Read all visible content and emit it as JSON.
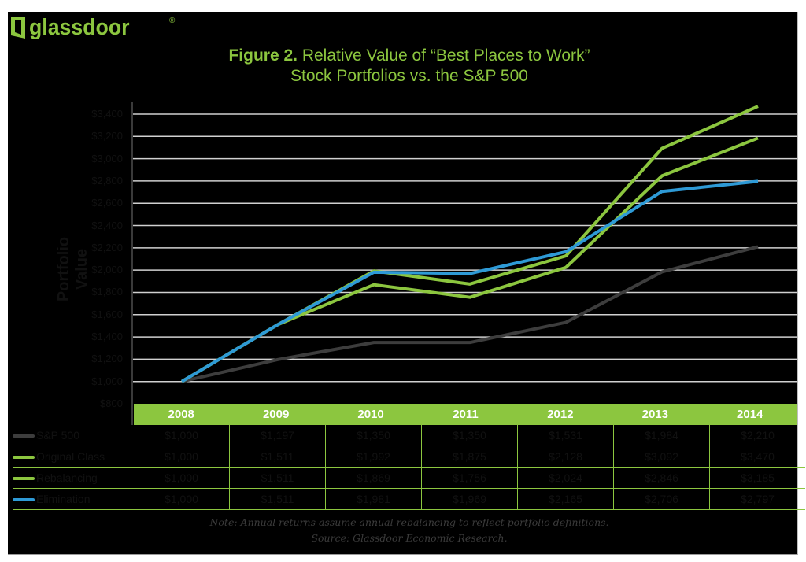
{
  "brand": {
    "name": "glassdoor",
    "registered_mark": "®",
    "color": "#8cc63f"
  },
  "title": {
    "prefix": "Figure 2.",
    "line1": " Relative Value of “Best Places to Work”",
    "line2": "Stock Portfolios vs. the S&P 500"
  },
  "colors": {
    "background": "#000000",
    "accent_green": "#8cc63f",
    "sp500": "#3d3d3d",
    "original_class": "#8cc63f",
    "rebalancing": "#8cc63f",
    "elimination": "#2e9ad6",
    "gridline": "#d0d0d0"
  },
  "chart_data": {
    "type": "line",
    "title": "Figure 2. Relative Value of “Best Places to Work” Stock Portfolios vs. the S&P 500",
    "xlabel": "",
    "ylabel": "Portfolio Value",
    "x": [
      "2008",
      "2009",
      "2010",
      "2011",
      "2012",
      "2013",
      "2014"
    ],
    "ylim": [
      800,
      3400
    ],
    "yticks": [
      "$800",
      "$1,000",
      "$1,200",
      "$1,400",
      "$1,600",
      "$1,800",
      "$2,000",
      "$2,200",
      "$2,400",
      "$2,600",
      "$2,800",
      "$3,000",
      "$3,200",
      "$3,400"
    ],
    "grid": true,
    "legend_position": "bottom-table",
    "series": [
      {
        "name": "S&P 500",
        "color": "#3d3d3d",
        "values": [
          1000,
          1197,
          1350,
          1350,
          1531,
          1984,
          2210
        ],
        "labels": [
          "$1,000",
          "$1,197",
          "$1,350",
          "$1,350",
          "$1,531",
          "$1,984",
          "$2,210"
        ]
      },
      {
        "name": "Original Class",
        "color": "#8cc63f",
        "values": [
          1000,
          1511,
          1992,
          1875,
          2128,
          3092,
          3470
        ],
        "labels": [
          "$1,000",
          "$1,511",
          "$1,992",
          "$1,875",
          "$2,128",
          "$3,092",
          "$3,470"
        ]
      },
      {
        "name": "Rebalancing",
        "color": "#8cc63f",
        "values": [
          1000,
          1511,
          1869,
          1756,
          2024,
          2846,
          3185
        ],
        "labels": [
          "$1,000",
          "$1,511",
          "$1,869",
          "$1,756",
          "$2,024",
          "$2,846",
          "$3,185"
        ]
      },
      {
        "name": "Elimination",
        "color": "#2e9ad6",
        "values": [
          1000,
          1511,
          1981,
          1969,
          2165,
          2706,
          2797
        ],
        "labels": [
          "$1,000",
          "$1,511",
          "$1,981",
          "$1,969",
          "$2,165",
          "$2,706",
          "$2,797"
        ]
      }
    ]
  },
  "notes": {
    "line1": "Note: Annual returns assume annual rebalancing to reflect portfolio definitions.",
    "line2": "Source: Glassdoor Economic Research."
  }
}
